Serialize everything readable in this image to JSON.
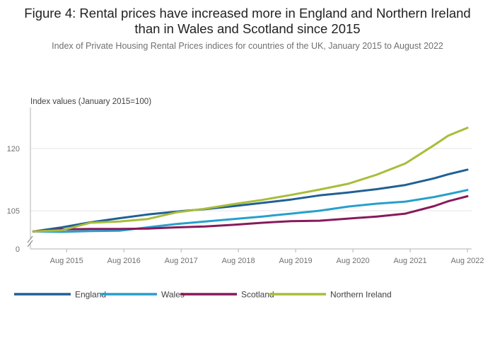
{
  "header": {
    "title": "Figure 4: Rental prices have increased more in England and Northern Ireland than in Wales and Scotland since 2015",
    "subtitle": "Index of Private Housing Rental Prices indices for countries of the UK, January 2015 to August 2022"
  },
  "chart_data": {
    "type": "line",
    "title": "Figure 4: Rental prices have increased more in England and Northern Ireland than in Wales and Scotland since 2015",
    "subtitle": "Index of Private Housing Rental Prices indices for countries of the UK, January 2015 to August 2022",
    "ylabel": "Index values (January 2015=100)",
    "xlabel": "",
    "x_ticks": [
      "Aug 2015",
      "Aug 2016",
      "Aug 2017",
      "Aug 2018",
      "Aug 2019",
      "Aug 2020",
      "Aug 2021",
      "Aug 2022"
    ],
    "y_ticks": [
      "120",
      "105",
      "0"
    ],
    "ylim": [
      100,
      125
    ],
    "y_axis_break": true,
    "grid": true,
    "legend_position": "bottom",
    "x": [
      "Jan 2015",
      "Jul 2015",
      "Jan 2016",
      "Jul 2016",
      "Jan 2017",
      "Jul 2017",
      "Jan 2018",
      "Jul 2018",
      "Jan 2019",
      "Jul 2019",
      "Jan 2020",
      "Jul 2020",
      "Jan 2021",
      "Jul 2021",
      "Jan 2022",
      "Apr 2022",
      "Aug 2022"
    ],
    "series": [
      {
        "name": "England",
        "color": "#206095",
        "values": [
          100,
          101,
          102.2,
          103.2,
          104.1,
          104.8,
          105.4,
          106.1,
          106.9,
          107.7,
          108.7,
          109.4,
          110.2,
          111.2,
          112.8,
          113.8,
          114.9
        ]
      },
      {
        "name": "Wales",
        "color": "#27A0CC",
        "values": [
          100,
          99.9,
          100.1,
          100.2,
          101,
          101.8,
          102.4,
          103,
          103.6,
          104.3,
          105,
          106,
          106.7,
          107.2,
          108.3,
          109,
          110
        ]
      },
      {
        "name": "Scotland",
        "color": "#871A5B",
        "values": [
          100,
          100.5,
          100.6,
          100.6,
          100.7,
          101,
          101.2,
          101.6,
          102.1,
          102.5,
          102.6,
          103.1,
          103.6,
          104.3,
          106.1,
          107.3,
          108.5
        ]
      },
      {
        "name": "Northern Ireland",
        "color": "#A8BD3A",
        "values": [
          100,
          100.3,
          102.1,
          102.4,
          103,
          104.6,
          105.5,
          106.6,
          107.6,
          108.8,
          110.1,
          111.5,
          113.7,
          116.4,
          120.8,
          123.1,
          125
        ]
      }
    ]
  }
}
